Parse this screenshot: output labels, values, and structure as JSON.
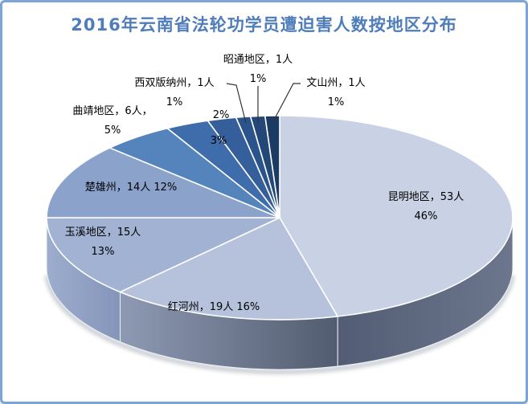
{
  "title": {
    "text": "2016年云南省法轮功学员遭迫害人数按地区分布",
    "color": "#4e7dba"
  },
  "frame": {
    "border_color": "#7aa5d6",
    "background": "#ffffff"
  },
  "chart_data": {
    "type": "pie",
    "style": "3d-pie",
    "title": "2016年云南省法轮功学员遭迫害人数按地区分布",
    "start_angle_deg": 0,
    "direction": "clockwise",
    "legend": "none",
    "label_color": "#000000",
    "slices": [
      {
        "id": "kunming",
        "region": "昆明地区",
        "count": 53,
        "count_unit": "人",
        "percent": 46,
        "callout": [
          "昆明地区，53人",
          "46%"
        ],
        "color": "#c9d2e4"
      },
      {
        "id": "honghe",
        "region": "红河州",
        "count": 19,
        "count_unit": "人",
        "percent": 16,
        "callout": [
          "红河州，19人 16%"
        ],
        "color": "#b6c2dc"
      },
      {
        "id": "yuxi",
        "region": "玉溪地区",
        "count": 15,
        "count_unit": "人",
        "percent": 13,
        "callout": [
          "玉溪地区，15人",
          "13%"
        ],
        "color": "#a2b2d3"
      },
      {
        "id": "chuxiong",
        "region": "楚雄州",
        "count": 14,
        "count_unit": "人",
        "percent": 12,
        "callout": [
          "楚雄州，14人 12%"
        ],
        "color": "#8ba2cb"
      },
      {
        "id": "qujing",
        "region": "曲靖地区",
        "count": 6,
        "count_unit": "人",
        "percent": 5,
        "callout": [
          "曲靖地区，6人，",
          "5%"
        ],
        "color": "#5584bd"
      },
      {
        "id": "pct3",
        "region": "",
        "count": null,
        "count_unit": "",
        "percent": 3,
        "callout": [
          "3%"
        ],
        "color": "#3f6dab"
      },
      {
        "id": "pct2",
        "region": "",
        "count": null,
        "count_unit": "",
        "percent": 2,
        "callout": [
          "2%"
        ],
        "color": "#345f9b"
      },
      {
        "id": "xishuangbanna",
        "region": "西双版纳州",
        "count": 1,
        "count_unit": "人",
        "percent": 1,
        "callout": [
          "西双版纳州，1人",
          "1%"
        ],
        "color": "#2b548c"
      },
      {
        "id": "zhaotong",
        "region": "昭通地区",
        "count": 1,
        "count_unit": "人",
        "percent": 1,
        "callout": [
          "昭通地区，1人",
          "1%"
        ],
        "color": "#234878"
      },
      {
        "id": "wenshan",
        "region": "文山州",
        "count": 1,
        "count_unit": "人",
        "percent": 1,
        "callout": [
          "文山州，1人",
          "1%"
        ],
        "color": "#1b3a64"
      }
    ]
  }
}
